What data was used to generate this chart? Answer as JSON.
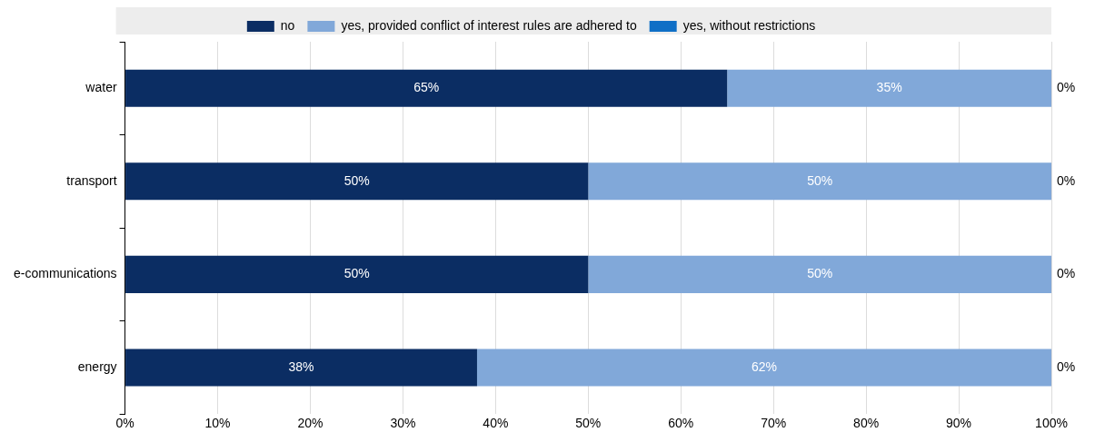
{
  "chart_data": {
    "type": "bar",
    "orientation": "horizontal",
    "stacked": true,
    "categories": [
      "water",
      "transport",
      "e-communications",
      "energy"
    ],
    "series": [
      {
        "name": "no",
        "color": "#0b2d63",
        "values": [
          65,
          50,
          50,
          38
        ],
        "value_labels": [
          "65%",
          "50%",
          "50%",
          "38%"
        ]
      },
      {
        "name": "yes, provided conflict of interest rules are adhered to",
        "color": "#81a8d9",
        "values": [
          35,
          50,
          50,
          62
        ],
        "value_labels": [
          "35%",
          "50%",
          "50%",
          "62%"
        ]
      },
      {
        "name": "yes, without restrictions",
        "color": "#0f6fc6",
        "values": [
          0,
          0,
          0,
          0
        ],
        "value_labels": [
          "0%",
          "0%",
          "0%",
          "0%"
        ]
      }
    ],
    "xlim": [
      0,
      100
    ],
    "xticks": [
      {
        "value": 0,
        "label": "0%"
      },
      {
        "value": 10,
        "label": "10%"
      },
      {
        "value": 20,
        "label": "20%"
      },
      {
        "value": 30,
        "label": "30%"
      },
      {
        "value": 40,
        "label": "40%"
      },
      {
        "value": 50,
        "label": "50%"
      },
      {
        "value": 60,
        "label": "60%"
      },
      {
        "value": 70,
        "label": "70%"
      },
      {
        "value": 80,
        "label": "80%"
      },
      {
        "value": 90,
        "label": "90%"
      },
      {
        "value": 100,
        "label": "100%"
      }
    ],
    "grid": "x",
    "legend": "top"
  }
}
